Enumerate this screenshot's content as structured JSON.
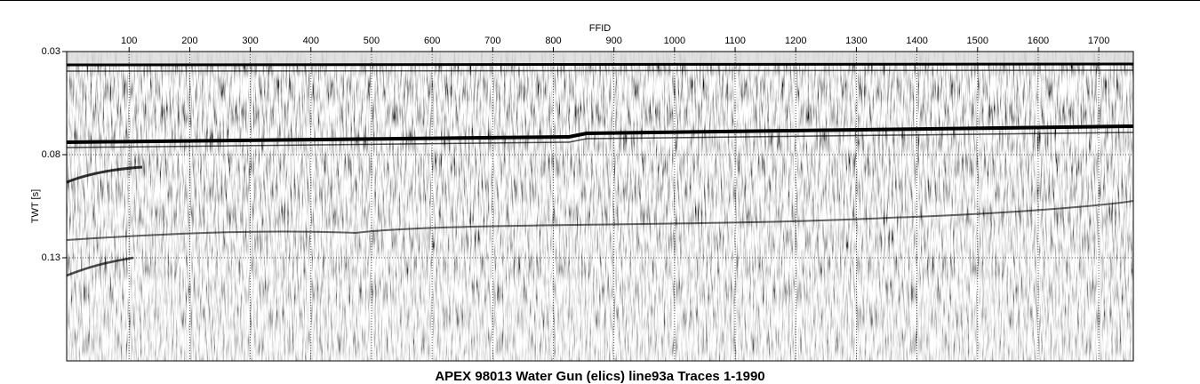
{
  "chart_data": {
    "type": "seismic",
    "title": "APEX 98013 Water Gun (elics) line93a Traces 1-1990",
    "x_label": "FFID",
    "y_label": "TWT [s]",
    "xlim": [
      -3,
      1757
    ],
    "xticks": [
      100,
      200,
      300,
      400,
      500,
      600,
      700,
      800,
      900,
      1000,
      1100,
      1200,
      1300,
      1400,
      1500,
      1600,
      1700
    ],
    "ylim": [
      0.03,
      0.18
    ],
    "yticks": [
      0.03,
      0.08,
      0.13
    ],
    "y_inverted": true,
    "grid": true
  }
}
